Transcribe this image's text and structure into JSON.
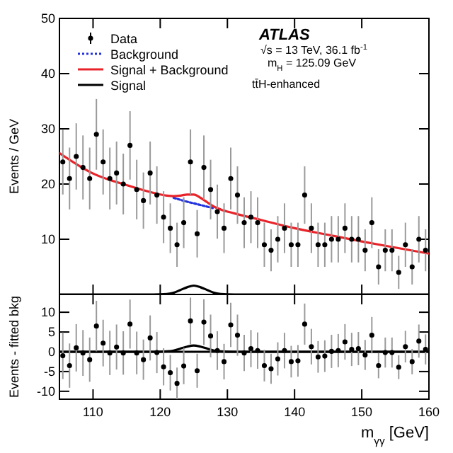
{
  "chart_data": [
    {
      "type": "scatter",
      "ylabel": "Events / GeV",
      "xlim": [
        105,
        160
      ],
      "xticks": [
        110,
        120,
        130,
        140,
        150,
        160
      ],
      "ylim": [
        0,
        50
      ],
      "yticks": [
        10,
        20,
        30,
        40,
        50
      ],
      "tick_labels": "y",
      "legend": "top left",
      "annotations": [
        "ATLAS",
        "√s = 13 TeV, 36.1 fb$^{-1}$",
        "m$_{H}$ = 125.09 GeV",
        "tt̄H-enhanced"
      ],
      "series": [
        {
          "name": "Data",
          "marker": "circle",
          "color": "#000000",
          "x": [
            105.5,
            106.5,
            107.5,
            108.5,
            109.5,
            110.5,
            111.5,
            112.5,
            113.5,
            114.5,
            115.5,
            116.5,
            117.5,
            118.5,
            119.5,
            120.5,
            121.5,
            122.5,
            123.5,
            124.5,
            125.5,
            126.5,
            127.5,
            128.5,
            129.5,
            130.5,
            131.5,
            132.5,
            133.5,
            134.5,
            135.5,
            136.5,
            137.5,
            138.5,
            139.5,
            140.5,
            141.5,
            142.5,
            143.5,
            144.5,
            145.5,
            146.5,
            147.5,
            148.5,
            149.5,
            150.5,
            151.5,
            152.5,
            153.5,
            154.5,
            155.5,
            156.5,
            157.5,
            158.5,
            159.5
          ],
          "values": [
            24,
            21,
            25,
            23,
            21,
            29,
            24,
            21,
            22,
            20,
            27,
            19,
            17,
            22,
            18,
            14,
            12,
            9,
            13,
            24,
            11,
            23,
            19,
            15,
            12,
            21,
            18,
            13,
            14,
            13,
            9,
            8,
            10,
            12,
            9,
            9,
            18,
            12,
            9,
            9,
            10,
            10,
            12,
            10,
            10,
            8,
            13,
            5,
            8,
            8,
            4,
            9,
            5,
            10,
            8
          ],
          "errors": [
            5.9,
            5.6,
            6,
            5.8,
            5.6,
            6.4,
            5.9,
            5.6,
            5.7,
            5.5,
            6.2,
            5.4,
            5.1,
            5.7,
            5.2,
            4.7,
            4.5,
            4,
            4.6,
            5.9,
            4.3,
            5.8,
            5.4,
            4.9,
            4.5,
            5.6,
            5.2,
            4.6,
            4.7,
            4.6,
            4,
            3.8,
            4.2,
            4.5,
            4,
            4,
            5.2,
            4.5,
            4,
            4,
            4.2,
            4.2,
            4.5,
            4.2,
            4.2,
            3.8,
            4.6,
            3.2,
            3.8,
            3.8,
            3,
            4,
            3.2,
            4.2,
            3.8
          ]
        },
        {
          "name": "Background",
          "type": "line",
          "color": "#2233dd",
          "line_style": "dotted",
          "x": [
            122,
            124,
            125,
            126,
            127,
            128
          ],
          "values": [
            17.5,
            16.8,
            16.5,
            16.2,
            15.9,
            15.6
          ]
        },
        {
          "name": "Signal + Background",
          "type": "line",
          "color": "#e8242a",
          "line_style": "solid",
          "x": [
            105,
            110,
            115,
            119,
            121,
            122,
            123,
            124,
            125,
            126,
            127,
            128,
            129,
            131,
            135,
            140,
            145,
            150,
            155,
            160
          ],
          "values": [
            25.6,
            21.9,
            19.8,
            18.4,
            17.9,
            17.8,
            17.9,
            18.1,
            18.1,
            17.5,
            16.7,
            15.9,
            15.4,
            14.7,
            13.5,
            12.0,
            10.8,
            9.6,
            8.5,
            7.4
          ]
        },
        {
          "name": "Signal",
          "type": "line",
          "color": "#000000",
          "line_style": "solid",
          "x": [
            105,
            119,
            121,
            122,
            123,
            124,
            125,
            126,
            127,
            128,
            129,
            131,
            160
          ],
          "values": [
            0,
            0,
            0.1,
            0.3,
            0.8,
            1.3,
            1.6,
            1.3,
            0.8,
            0.3,
            0.1,
            0,
            0
          ]
        }
      ]
    },
    {
      "type": "scatter",
      "ylabel": "Events - fitted bkg",
      "xlabel": "m$_{γγ}$ [GeV]",
      "xlim": [
        105,
        160
      ],
      "xticks": [
        110,
        120,
        130,
        140,
        150,
        160
      ],
      "ylim": [
        -12,
        14.5
      ],
      "yticks": [
        -10,
        -5,
        0,
        5,
        10
      ],
      "ref_lines": [
        {
          "axis": "y",
          "value": 0,
          "color": "#000000"
        }
      ],
      "series": [
        {
          "marker": "circle",
          "color": "#000000",
          "x": [
            105.5,
            106.5,
            107.5,
            108.5,
            109.5,
            110.5,
            111.5,
            112.5,
            113.5,
            114.5,
            115.5,
            116.5,
            117.5,
            118.5,
            119.5,
            120.5,
            121.5,
            122.5,
            123.5,
            124.5,
            125.5,
            126.5,
            127.5,
            128.5,
            129.5,
            130.5,
            131.5,
            132.5,
            133.5,
            134.5,
            135.5,
            136.5,
            137.5,
            138.5,
            139.5,
            140.5,
            141.5,
            142.5,
            143.5,
            144.5,
            145.5,
            146.5,
            147.5,
            148.5,
            149.5,
            150.5,
            151.5,
            152.5,
            153.5,
            154.5,
            155.5,
            156.5,
            157.5,
            158.5,
            159.5
          ],
          "values": [
            -1,
            -3.5,
            1,
            -0.3,
            -2,
            6.5,
            2.2,
            -0.3,
            1.2,
            -0.3,
            7,
            -0.3,
            -2,
            3.5,
            -0.2,
            -3.8,
            -5.3,
            -8,
            -3.6,
            7.8,
            -4.8,
            7.5,
            4,
            0.3,
            -2.5,
            6.8,
            4.2,
            -0.3,
            0.8,
            0.3,
            -3.5,
            -4.3,
            -1.8,
            0.3,
            -2.5,
            -2.3,
            7,
            1.3,
            -1.3,
            -1.1,
            0.1,
            0.3,
            2.5,
            0.6,
            0.8,
            -0.8,
            4.2,
            -3.5,
            -0.2,
            -0.2,
            -3.9,
            1.3,
            -2.5,
            2.7,
            0.6
          ],
          "errors": [
            5.9,
            5.6,
            6,
            5.8,
            5.6,
            6.4,
            5.9,
            5.6,
            5.7,
            5.5,
            6.2,
            5.4,
            5.1,
            5.7,
            5.2,
            4.7,
            4.5,
            4,
            4.6,
            5.9,
            4.3,
            5.8,
            5.4,
            4.9,
            4.5,
            5.6,
            5.2,
            4.6,
            4.7,
            4.6,
            4,
            3.8,
            4.2,
            4.5,
            4,
            4,
            5.2,
            4.5,
            4,
            4,
            4.2,
            4.2,
            4.5,
            4.2,
            4.2,
            3.8,
            4.6,
            3.2,
            3.8,
            3.8,
            3,
            4,
            3.2,
            4.2,
            3.8
          ]
        },
        {
          "type": "line",
          "color": "#000000",
          "line_style": "solid",
          "x": [
            105,
            119,
            121,
            122,
            123,
            124,
            125,
            126,
            127,
            128,
            129,
            131,
            160
          ],
          "values": [
            0,
            0,
            0.1,
            0.3,
            0.8,
            1.3,
            1.6,
            1.3,
            0.8,
            0.3,
            0.1,
            0,
            0
          ]
        }
      ]
    }
  ]
}
